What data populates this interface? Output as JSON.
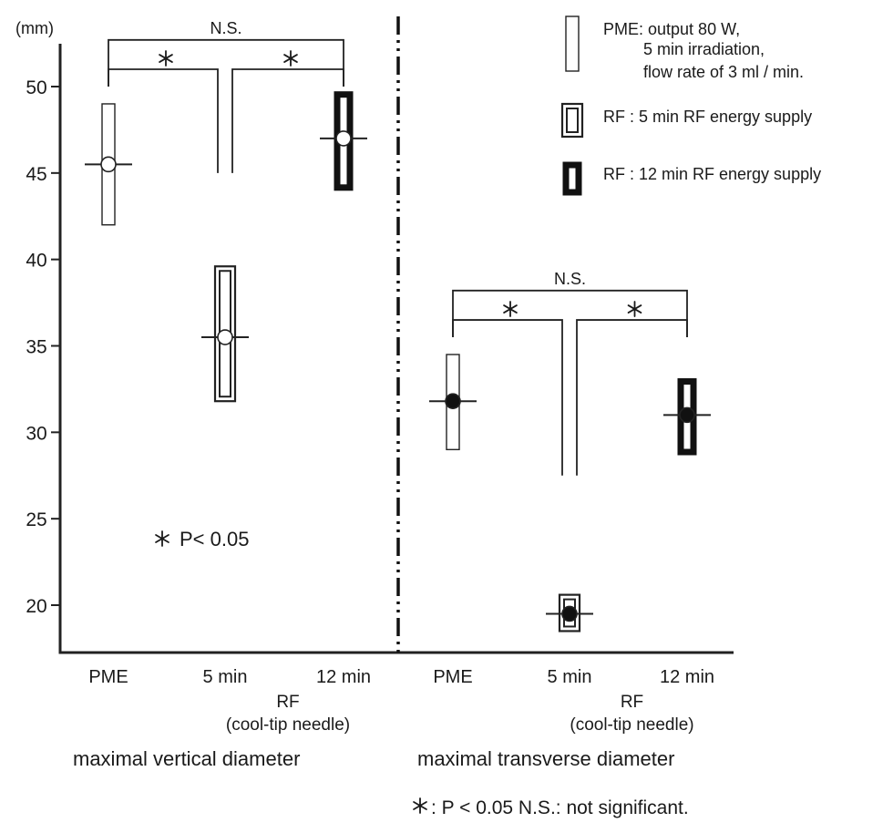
{
  "chart_data": {
    "type": "range",
    "unit": "(mm)",
    "ylim": [
      17,
      53
    ],
    "yticks": [
      20,
      25,
      30,
      35,
      40,
      45,
      50
    ],
    "categories": [
      "PME",
      "5 min",
      "12 min"
    ],
    "rf_label_line1": "RF",
    "rf_label_line2": "(cool-tip needle)",
    "groups": [
      {
        "title": "maximal vertical diameter",
        "marker_fill": "#ffffff",
        "items": [
          {
            "category": "PME",
            "style": "plain",
            "low": 42.0,
            "high": 49.0,
            "median": 45.5
          },
          {
            "category": "5 min",
            "style": "double",
            "low": 31.8,
            "high": 39.6,
            "median": 35.5
          },
          {
            "category": "12 min",
            "style": "bold",
            "low": 44.0,
            "high": 49.7,
            "median": 47.0
          }
        ],
        "significance": {
          "outer": {
            "label": "N.S.",
            "level": 52.7,
            "left_end": 50.0,
            "right_end": 50.0
          },
          "left": {
            "label": "*",
            "level": 51.0,
            "left_end": 50.0,
            "right_end": 45.0
          },
          "right": {
            "label": "*",
            "level": 51.0,
            "left_end": 45.0,
            "right_end": 50.0
          }
        }
      },
      {
        "title": "maximal transverse diameter",
        "marker_fill": "#111111",
        "items": [
          {
            "category": "PME",
            "style": "plain",
            "low": 29.0,
            "high": 34.5,
            "median": 31.8
          },
          {
            "category": "5 min",
            "style": "double",
            "low": 18.5,
            "high": 20.6,
            "median": 19.5
          },
          {
            "category": "12 min",
            "style": "bold",
            "low": 28.7,
            "high": 33.1,
            "median": 31.0
          }
        ],
        "significance": {
          "outer": {
            "label": "N.S.",
            "level": 38.2,
            "left_end": 35.5,
            "right_end": 35.5
          },
          "left": {
            "label": "*",
            "level": 36.5,
            "left_end": 35.5,
            "right_end": 27.5
          },
          "right": {
            "label": "*",
            "level": 36.5,
            "left_end": 27.5,
            "right_end": 35.5
          }
        }
      }
    ],
    "legend": [
      {
        "style": "plain",
        "lines": [
          "PME: output 80 W,",
          "5 min irradiation,",
          "flow rate of 3 ml / min."
        ]
      },
      {
        "style": "double",
        "lines": [
          "RF : 5 min RF energy supply"
        ]
      },
      {
        "style": "bold",
        "lines": [
          "RF : 12 min RF energy supply"
        ]
      }
    ],
    "p_note": "P< 0.05",
    "footnote": ": P < 0.05   N.S.: not significant.",
    "star_symbol": "*"
  }
}
